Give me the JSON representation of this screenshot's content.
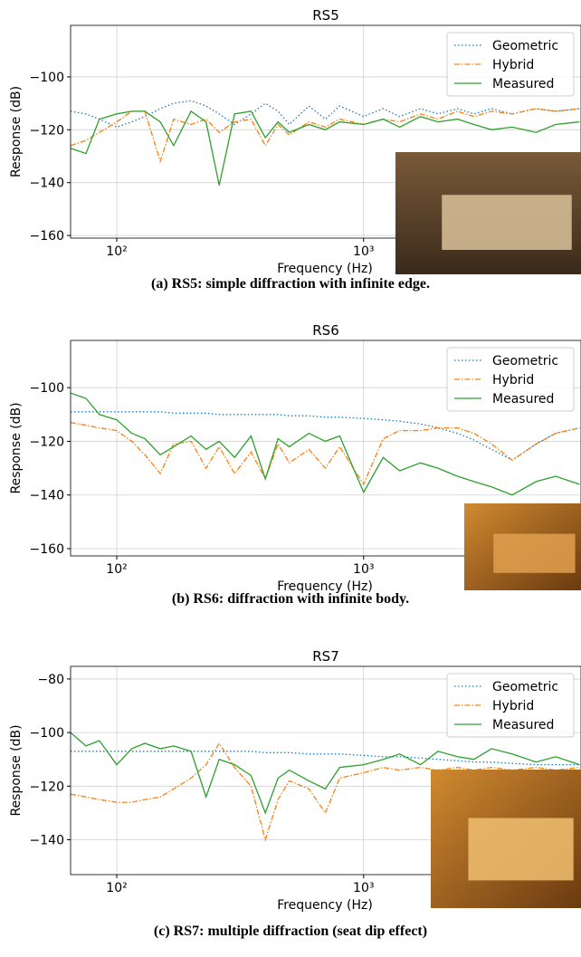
{
  "chart_data": [
    {
      "type": "line",
      "title": "RS5",
      "caption": "(a) RS5: simple diffraction with infinite edge.",
      "x_label": "Frequency (Hz)",
      "y_label": "Response (dB)",
      "log_x": true,
      "grid": true,
      "legend": "upper right",
      "xlim": [
        65,
        7600
      ],
      "ylim": [
        -161,
        -80.5
      ],
      "xticks": [
        {
          "value": 100,
          "label": "10²"
        },
        {
          "value": 1000,
          "label": "10³"
        }
      ],
      "yticks": [
        {
          "value": -160,
          "label": "−160"
        },
        {
          "value": -140,
          "label": "−140"
        },
        {
          "value": -120,
          "label": "−120"
        },
        {
          "value": -100,
          "label": "−100"
        }
      ],
      "x": [
        65,
        75,
        85,
        100,
        115,
        130,
        150,
        170,
        200,
        230,
        260,
        300,
        350,
        400,
        450,
        500,
        600,
        700,
        800,
        1000,
        1200,
        1400,
        1700,
        2000,
        2400,
        2800,
        3300,
        4000,
        5000,
        6000,
        7500
      ],
      "series": [
        {
          "name": "Geometric",
          "color": "#1f77b4",
          "dash": "1.5,2.5",
          "values": [
            -113,
            -114,
            -116,
            -119,
            -117,
            -115,
            -112,
            -110,
            -109,
            -111,
            -114,
            -118,
            -114,
            -110,
            -113,
            -118,
            -111,
            -116,
            -111,
            -115,
            -112,
            -115,
            -112,
            -114,
            -112,
            -114,
            -112,
            -114,
            -112,
            -113,
            -112
          ]
        },
        {
          "name": "Hybrid",
          "color": "#ff7f0e",
          "dash": "6,2,1.5,2",
          "values": [
            -126,
            -124,
            -121,
            -117,
            -113,
            -113,
            -132,
            -116,
            -118,
            -116,
            -121,
            -117,
            -116,
            -126,
            -118,
            -122,
            -117,
            -119,
            -116,
            -118,
            -116,
            -117,
            -114,
            -116,
            -113,
            -115,
            -113,
            -114,
            -112,
            -113,
            -112
          ]
        },
        {
          "name": "Measured",
          "color": "#2ca02c",
          "dash": "",
          "values": [
            -127,
            -129,
            -116,
            -114,
            -113,
            -113,
            -117,
            -126,
            -113,
            -117,
            -141,
            -114,
            -113,
            -123,
            -117,
            -121,
            -118,
            -120,
            -117,
            -118,
            -116,
            -119,
            -115,
            -117,
            -116,
            -118,
            -120,
            -119,
            -121,
            -118,
            -117
          ]
        }
      ]
    },
    {
      "type": "line",
      "title": "RS6",
      "caption": "(b) RS6: diffraction with infinite body.",
      "x_label": "Frequency (Hz)",
      "y_label": "Response (dB)",
      "log_x": true,
      "grid": true,
      "legend": "upper right",
      "xlim": [
        65,
        7600
      ],
      "ylim": [
        -162.7,
        -82.4
      ],
      "xticks": [
        {
          "value": 100,
          "label": "10²"
        },
        {
          "value": 1000,
          "label": "10³"
        }
      ],
      "yticks": [
        {
          "value": -160,
          "label": "−160"
        },
        {
          "value": -140,
          "label": "−140"
        },
        {
          "value": -120,
          "label": "−120"
        },
        {
          "value": -100,
          "label": "−100"
        }
      ],
      "x": [
        65,
        75,
        85,
        100,
        115,
        130,
        150,
        170,
        200,
        230,
        260,
        300,
        350,
        400,
        450,
        500,
        600,
        700,
        800,
        1000,
        1200,
        1400,
        1700,
        2000,
        2400,
        2800,
        3300,
        4000,
        5000,
        6000,
        7500
      ],
      "series": [
        {
          "name": "Geometric",
          "color": "#1f77b4",
          "dash": "1.5,2.5",
          "values": [
            -109,
            -109,
            -109,
            -109,
            -109,
            -109,
            -109,
            -109.5,
            -109.5,
            -109.5,
            -110,
            -110,
            -110,
            -110,
            -110,
            -110.5,
            -110.5,
            -111,
            -111,
            -111.5,
            -112,
            -112.5,
            -113.5,
            -115,
            -117,
            -119.5,
            -123,
            -127,
            -121,
            -117,
            -115
          ]
        },
        {
          "name": "Hybrid",
          "color": "#ff7f0e",
          "dash": "6,2,1.5,2",
          "values": [
            -113,
            -114,
            -115,
            -116,
            -120,
            -125,
            -132,
            -121,
            -120,
            -130,
            -122,
            -132,
            -124,
            -134,
            -121,
            -128,
            -123,
            -130,
            -122,
            -136,
            -119,
            -116,
            -116,
            -115,
            -115,
            -117,
            -121,
            -127,
            -121,
            -117,
            -115
          ]
        },
        {
          "name": "Measured",
          "color": "#2ca02c",
          "dash": "",
          "values": [
            -102,
            -104,
            -110,
            -112,
            -117,
            -119,
            -125,
            -122,
            -118,
            -123,
            -120,
            -126,
            -118,
            -134,
            -119,
            -122,
            -117,
            -120,
            -118,
            -139,
            -126,
            -131,
            -128,
            -130,
            -133,
            -135,
            -137,
            -140,
            -135,
            -133,
            -136
          ]
        }
      ]
    },
    {
      "type": "line",
      "title": "RS7",
      "caption": "(c) RS7: multiple diffraction (seat dip effect)",
      "x_label": "Frequency (Hz)",
      "y_label": "Response (dB)",
      "log_x": true,
      "grid": true,
      "legend": "upper right",
      "xlim": [
        65,
        7600
      ],
      "ylim": [
        -153,
        -75.3
      ],
      "xticks": [
        {
          "value": 100,
          "label": "10²"
        },
        {
          "value": 1000,
          "label": "10³"
        }
      ],
      "yticks": [
        {
          "value": -140,
          "label": "−140"
        },
        {
          "value": -120,
          "label": "−120"
        },
        {
          "value": -100,
          "label": "−100"
        },
        {
          "value": -80,
          "label": "−80"
        }
      ],
      "x": [
        65,
        75,
        85,
        100,
        115,
        130,
        150,
        170,
        200,
        230,
        260,
        300,
        350,
        400,
        450,
        500,
        600,
        700,
        800,
        1000,
        1200,
        1400,
        1700,
        2000,
        2400,
        2800,
        3300,
        4000,
        5000,
        6000,
        7500
      ],
      "series": [
        {
          "name": "Geometric",
          "color": "#1f77b4",
          "dash": "1.5,2.5",
          "values": [
            -107,
            -107,
            -107,
            -107,
            -107,
            -107,
            -107,
            -107,
            -107,
            -107,
            -107,
            -107,
            -107,
            -107.5,
            -107.5,
            -107.5,
            -108,
            -108,
            -108,
            -108.5,
            -109,
            -109,
            -109.5,
            -110,
            -110.5,
            -111,
            -111,
            -111.5,
            -112,
            -112,
            -112
          ]
        },
        {
          "name": "Hybrid",
          "color": "#ff7f0e",
          "dash": "6,2,1.5,2",
          "values": [
            -123,
            -124,
            -125,
            -126,
            -126,
            -125,
            -124,
            -121,
            -117,
            -112,
            -104,
            -113,
            -120,
            -140,
            -125,
            -118,
            -121,
            -130,
            -117,
            -115,
            -113,
            -114,
            -113,
            -114,
            -113,
            -114,
            -113,
            -114,
            -113,
            -114,
            -113
          ]
        },
        {
          "name": "Measured",
          "color": "#2ca02c",
          "dash": "",
          "values": [
            -100,
            -105,
            -103,
            -112,
            -106,
            -104,
            -106,
            -105,
            -107,
            -124,
            -110,
            -112,
            -116,
            -130,
            -117,
            -114,
            -118,
            -121,
            -113,
            -112,
            -110,
            -108,
            -112,
            -107,
            -109,
            -110,
            -106,
            -108,
            -111,
            -109,
            -112
          ]
        }
      ]
    }
  ]
}
